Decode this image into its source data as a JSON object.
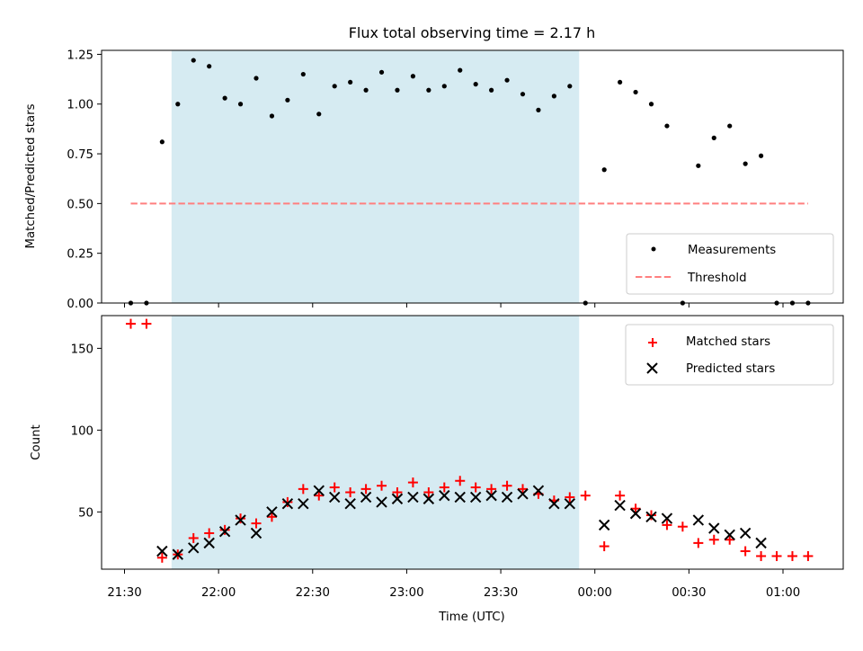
{
  "chart_data": {
    "type": "scatter",
    "title": "Flux total observing time = 2.17 h",
    "xlabel": "Time (UTC)",
    "x_tick_labels": [
      "21:30",
      "22:00",
      "22:30",
      "23:00",
      "23:30",
      "00:00",
      "00:30",
      "01:00"
    ],
    "colors": {
      "measurements": "#000000",
      "threshold": "#ff7f7f",
      "matched": "#ff0000",
      "predicted": "#000000",
      "observing_window": "#add8e6"
    },
    "observing_window": {
      "start": "21:45",
      "end": "23:55"
    },
    "top": {
      "ylabel": "Matched/Predicted stars",
      "ylim": [
        0,
        1.27
      ],
      "y_tick_labels": [
        "0.00",
        "0.25",
        "0.50",
        "0.75",
        "1.00",
        "1.25"
      ],
      "legend": [
        "Measurements",
        "Threshold"
      ],
      "legend_position": "lower-right",
      "threshold": {
        "value": 0.5,
        "x_start": "21:32",
        "x_end": "01:08"
      },
      "measurements": {
        "times": [
          "21:32",
          "21:37",
          "21:42",
          "21:47",
          "21:52",
          "21:57",
          "22:02",
          "22:07",
          "22:12",
          "22:17",
          "22:22",
          "22:27",
          "22:32",
          "22:37",
          "22:42",
          "22:47",
          "22:52",
          "22:57",
          "23:02",
          "23:07",
          "23:12",
          "23:17",
          "23:22",
          "23:27",
          "23:32",
          "23:37",
          "23:42",
          "23:47",
          "23:52",
          "23:57",
          "00:03",
          "00:08",
          "00:13",
          "00:18",
          "00:23",
          "00:28",
          "00:33",
          "00:38",
          "00:43",
          "00:48",
          "00:53",
          "00:58",
          "01:03",
          "01:08"
        ],
        "values": [
          0.0,
          0.0,
          0.81,
          1.0,
          1.22,
          1.19,
          1.03,
          1.0,
          1.13,
          0.94,
          1.02,
          1.15,
          0.95,
          1.09,
          1.11,
          1.07,
          1.16,
          1.07,
          1.14,
          1.07,
          1.09,
          1.17,
          1.1,
          1.07,
          1.12,
          1.05,
          0.97,
          1.04,
          1.09,
          0.0,
          0.67,
          1.11,
          1.06,
          1.0,
          0.89,
          0.0,
          0.69,
          0.83,
          0.89,
          0.7,
          0.74,
          0.0,
          0.0,
          0.0
        ]
      }
    },
    "bottom": {
      "ylabel": "Count",
      "ylim": [
        15,
        170
      ],
      "y_tick_labels": [
        "50",
        "100",
        "150"
      ],
      "legend": [
        "Matched stars",
        "Predicted stars"
      ],
      "legend_position": "upper-right",
      "matched": {
        "times": [
          "21:32",
          "21:37",
          "21:42",
          "21:47",
          "21:52",
          "21:57",
          "22:02",
          "22:07",
          "22:12",
          "22:17",
          "22:22",
          "22:27",
          "22:32",
          "22:37",
          "22:42",
          "22:47",
          "22:52",
          "22:57",
          "23:02",
          "23:07",
          "23:12",
          "23:17",
          "23:22",
          "23:27",
          "23:32",
          "23:37",
          "23:42",
          "23:47",
          "23:52",
          "23:57",
          "00:03",
          "00:08",
          "00:13",
          "00:18",
          "00:23",
          "00:28",
          "00:33",
          "00:38",
          "00:43",
          "00:48",
          "00:53",
          "00:58",
          "01:03",
          "01:08"
        ],
        "values": [
          165,
          165,
          22,
          24,
          34,
          37,
          39,
          46,
          43,
          47,
          56,
          64,
          60,
          65,
          62,
          64,
          66,
          62,
          68,
          62,
          65,
          69,
          65,
          64,
          66,
          64,
          61,
          57,
          59,
          60,
          29,
          60,
          52,
          48,
          42,
          41,
          31,
          33,
          33,
          26,
          23,
          23,
          23,
          23
        ]
      },
      "predicted": {
        "times": [
          "21:42",
          "21:47",
          "21:52",
          "21:57",
          "22:02",
          "22:07",
          "22:12",
          "22:17",
          "22:22",
          "22:27",
          "22:32",
          "22:37",
          "22:42",
          "22:47",
          "22:52",
          "22:57",
          "23:02",
          "23:07",
          "23:12",
          "23:17",
          "23:22",
          "23:27",
          "23:32",
          "23:37",
          "23:42",
          "23:47",
          "23:52",
          "00:03",
          "00:08",
          "00:13",
          "00:18",
          "00:23",
          "00:33",
          "00:38",
          "00:43",
          "00:48",
          "00:53"
        ],
        "values": [
          26,
          24,
          28,
          31,
          38,
          45,
          37,
          50,
          55,
          55,
          63,
          59,
          55,
          59,
          56,
          58,
          59,
          58,
          60,
          59,
          59,
          60,
          59,
          61,
          63,
          55,
          55,
          42,
          54,
          49,
          47,
          46,
          45,
          40,
          36,
          37,
          31
        ]
      }
    }
  }
}
